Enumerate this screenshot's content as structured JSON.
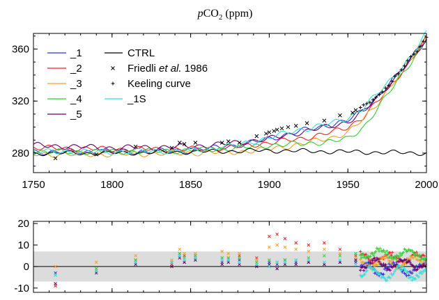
{
  "chart_data": [
    {
      "type": "line",
      "title": "pCO2 (ppm)",
      "title_parts": {
        "italic": "p",
        "main": "CO",
        "sub": "2",
        "unit": " (ppm)"
      },
      "xlabel": "",
      "ylabel": "",
      "xlim": [
        1750,
        2000
      ],
      "ylim": [
        265,
        372
      ],
      "x_ticks": [
        1750,
        1800,
        1850,
        1900,
        1950,
        2000
      ],
      "y_ticks": [
        280,
        320,
        360
      ],
      "grid": false,
      "legend_position": "top-left",
      "legend": [
        {
          "label": "_1",
          "color": "#3333cc",
          "kind": "line"
        },
        {
          "label": "_2",
          "color": "#ee2222",
          "kind": "line"
        },
        {
          "label": "_3",
          "color": "#f0a020",
          "kind": "line"
        },
        {
          "label": "_4",
          "color": "#33cc33",
          "kind": "line"
        },
        {
          "label": "_5",
          "color": "#660066",
          "kind": "line"
        },
        {
          "label": "CTRL",
          "color": "#000000",
          "kind": "line"
        },
        {
          "label": "Friedli",
          "label_italic": "et al.",
          "label_suffix": " 1986",
          "color": "#000000",
          "kind": "x-marker"
        },
        {
          "label": "Keeling curve",
          "color": "#000000",
          "kind": "plus-marker"
        },
        {
          "label": "_1S",
          "color": "#33dddd",
          "kind": "line"
        }
      ],
      "series": [
        {
          "name": "_1",
          "color": "#3333cc",
          "x": [
            1750,
            1800,
            1850,
            1880,
            1900,
            1920,
            1940,
            1950,
            1960,
            1970,
            1980,
            1990,
            2000
          ],
          "y": [
            281,
            281,
            282,
            286,
            291,
            297,
            302,
            305,
            313,
            325,
            338,
            352,
            368
          ]
        },
        {
          "name": "_2",
          "color": "#ee2222",
          "x": [
            1750,
            1800,
            1850,
            1880,
            1900,
            1920,
            1940,
            1950,
            1960,
            1970,
            1980,
            1990,
            2000
          ],
          "y": [
            284,
            283,
            283,
            285,
            288,
            291,
            296,
            300,
            308,
            321,
            336,
            351,
            368
          ]
        },
        {
          "name": "_3",
          "color": "#f0a020",
          "x": [
            1750,
            1800,
            1850,
            1880,
            1900,
            1920,
            1940,
            1950,
            1960,
            1970,
            1980,
            1990,
            2000
          ],
          "y": [
            279,
            279,
            280,
            281,
            283,
            287,
            292,
            296,
            306,
            320,
            336,
            352,
            369
          ]
        },
        {
          "name": "_4",
          "color": "#33cc33",
          "x": [
            1750,
            1800,
            1850,
            1880,
            1900,
            1920,
            1940,
            1950,
            1960,
            1970,
            1980,
            1990,
            2000
          ],
          "y": [
            281,
            281,
            282,
            284,
            286,
            287,
            289,
            291,
            300,
            316,
            333,
            350,
            367
          ]
        },
        {
          "name": "_5",
          "color": "#660066",
          "x": [
            1750,
            1800,
            1850,
            1880,
            1900,
            1920,
            1940,
            1950,
            1960,
            1970,
            1980,
            1990,
            2000
          ],
          "y": [
            286,
            284,
            285,
            288,
            291,
            296,
            301,
            304,
            312,
            324,
            338,
            352,
            368
          ]
        },
        {
          "name": "CTRL",
          "color": "#000000",
          "x": [
            1750,
            1800,
            1850,
            1900,
            1950,
            2000
          ],
          "y": [
            280,
            280,
            281,
            282,
            281,
            280
          ]
        },
        {
          "name": "_1S",
          "color": "#33dddd",
          "x": [
            1750,
            1800,
            1850,
            1880,
            1900,
            1920,
            1940,
            1950,
            1960,
            1970,
            1980,
            1990,
            2000
          ],
          "y": [
            281,
            281,
            282,
            286,
            292,
            298,
            303,
            307,
            315,
            327,
            340,
            354,
            372
          ]
        },
        {
          "name": "Friedli et al. 1986",
          "color": "#000000",
          "marker": "x",
          "x": [
            1764,
            1790,
            1815,
            1838,
            1843,
            1846,
            1853,
            1870,
            1874,
            1881,
            1892,
            1898,
            1900,
            1903,
            1905,
            1908,
            1912,
            1917,
            1924,
            1935,
            1945,
            1953,
            1955
          ],
          "y": [
            276,
            279,
            285,
            284,
            288,
            287,
            288,
            288,
            289,
            288,
            293,
            295,
            296,
            297,
            298,
            299,
            300,
            301,
            303,
            305,
            309,
            311,
            313
          ]
        },
        {
          "name": "Keeling curve",
          "color": "#000000",
          "marker": "+",
          "x": [
            1958,
            1960,
            1962,
            1964,
            1966,
            1968,
            1970,
            1972,
            1974,
            1976,
            1978,
            1980,
            1982,
            1984,
            1986,
            1988,
            1990,
            1992,
            1994,
            1996,
            1998,
            2000
          ],
          "y": [
            315,
            317,
            318,
            319,
            321,
            323,
            325,
            327,
            330,
            332,
            335,
            339,
            341,
            344,
            347,
            351,
            354,
            356,
            358,
            362,
            366,
            369
          ]
        }
      ]
    },
    {
      "type": "scatter",
      "title": "",
      "xlim": [
        1750,
        2000
      ],
      "ylim": [
        -12,
        21
      ],
      "y_ticks": [
        20,
        10,
        0,
        -10
      ],
      "band": {
        "from": -7,
        "to": 7,
        "color": "#dcdcdc"
      },
      "zero_line": true,
      "series": [
        {
          "name": "_1",
          "color": "#3333cc",
          "x": [
            1764,
            1790,
            1815,
            1838,
            1843,
            1846,
            1853,
            1870,
            1874,
            1881,
            1892,
            1900,
            1905,
            1910,
            1917,
            1925,
            1935,
            1945,
            1955
          ],
          "y": [
            -3,
            -2,
            2,
            2,
            5,
            2,
            4,
            2,
            3,
            3,
            1,
            2,
            1,
            3,
            2,
            2,
            1,
            2,
            2
          ],
          "dense_x": [
            1958,
            2000
          ],
          "dense_base": -1,
          "dense_amp": 2.5
        },
        {
          "name": "_2",
          "color": "#ee2222",
          "x": [
            1764,
            1790,
            1815,
            1838,
            1843,
            1846,
            1853,
            1870,
            1874,
            1881,
            1892,
            1900,
            1905,
            1910,
            1917,
            1925,
            1935,
            1945,
            1955
          ],
          "y": [
            -9,
            -2,
            3,
            1,
            6,
            5,
            5,
            4,
            4,
            5,
            4,
            14,
            15,
            13,
            11,
            10,
            11,
            8,
            5
          ],
          "dense_x": [
            1958,
            2000
          ],
          "dense_base": 4,
          "dense_amp": 2
        },
        {
          "name": "_3",
          "color": "#f0a020",
          "x": [
            1764,
            1790,
            1815,
            1838,
            1843,
            1846,
            1853,
            1870,
            1874,
            1881,
            1892,
            1900,
            1905,
            1910,
            1917,
            1925,
            1935,
            1945,
            1955
          ],
          "y": [
            0,
            2,
            5,
            3,
            8,
            6,
            6,
            7,
            6,
            6,
            3,
            9,
            10,
            9,
            8,
            7,
            8,
            6,
            4
          ],
          "dense_x": [
            1958,
            2000
          ],
          "dense_base": 2,
          "dense_amp": 2
        },
        {
          "name": "_4",
          "color": "#33cc33",
          "x": [
            1764,
            1790,
            1815,
            1838,
            1843,
            1846,
            1853,
            1870,
            1874,
            1881,
            1892,
            1900,
            1905,
            1910,
            1917,
            1925,
            1935,
            1945,
            1955
          ],
          "y": [
            -4,
            -1,
            3,
            2,
            6,
            4,
            5,
            4,
            4,
            4,
            2,
            3,
            2,
            3,
            3,
            4,
            5,
            5,
            6
          ],
          "dense_x": [
            1958,
            2000
          ],
          "dense_base": 6,
          "dense_amp": 2
        },
        {
          "name": "_5",
          "color": "#660066",
          "x": [
            1764,
            1790,
            1815,
            1838,
            1843,
            1846,
            1853,
            1870,
            1874,
            1881,
            1892,
            1900,
            1905,
            1910,
            1917,
            1925,
            1935,
            1945,
            1955
          ],
          "y": [
            -8,
            -3,
            1,
            0,
            4,
            2,
            3,
            1,
            2,
            1,
            0,
            1,
            -1,
            1,
            1,
            2,
            1,
            2,
            3
          ],
          "dense_x": [
            1958,
            2000
          ],
          "dense_base": 1,
          "dense_amp": 2
        },
        {
          "name": "_1S",
          "color": "#33dddd",
          "x": [
            1764,
            1790,
            1815,
            1838,
            1843,
            1846,
            1853,
            1870,
            1874,
            1881,
            1892,
            1900,
            1905,
            1910,
            1917,
            1925,
            1935,
            1945,
            1955
          ],
          "y": [
            -4,
            -2,
            2,
            2,
            5,
            3,
            4,
            3,
            3,
            2,
            1,
            0,
            2,
            2,
            3,
            3,
            2,
            3,
            1
          ],
          "dense_x": [
            1958,
            2000
          ],
          "dense_base": -3,
          "dense_amp": 2.5
        }
      ]
    }
  ]
}
